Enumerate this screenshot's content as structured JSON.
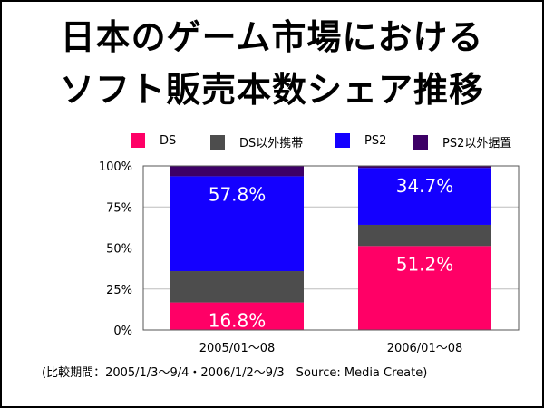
{
  "title": {
    "line1": "日本のゲーム市場における",
    "line2": "ソフト販売本数シェア推移"
  },
  "footnote": "(比較期間：2005/1/3〜9/4・2006/1/2〜9/3　Source: Media Create)",
  "chart_data": {
    "type": "bar",
    "stacked": true,
    "title": "日本のゲーム市場におけるソフト販売本数シェア推移",
    "xlabel": "",
    "ylabel": "",
    "ylim": [
      0,
      100
    ],
    "yticks": [
      "0%",
      "25%",
      "50%",
      "75%",
      "100%"
    ],
    "ytick_values": [
      0,
      25,
      50,
      75,
      100
    ],
    "grid": true,
    "legend_position": "top",
    "categories": [
      "2005/01〜08",
      "2006/01〜08"
    ],
    "series": [
      {
        "name": "DS",
        "color": "#ff0066",
        "values": [
          16.8,
          51.2
        ],
        "labels": [
          "16.8%",
          "51.2%"
        ]
      },
      {
        "name": "DS以外携帯",
        "color": "#4d4d4d",
        "values": [
          19.1,
          12.9
        ],
        "labels": [
          null,
          null
        ]
      },
      {
        "name": "PS2",
        "color": "#1400ff",
        "values": [
          57.8,
          34.7
        ],
        "labels": [
          "57.8%",
          "34.7%"
        ]
      },
      {
        "name": "PS2以外据置",
        "color": "#3d0066",
        "values": [
          6.3,
          1.2
        ],
        "labels": [
          null,
          null
        ]
      }
    ]
  }
}
